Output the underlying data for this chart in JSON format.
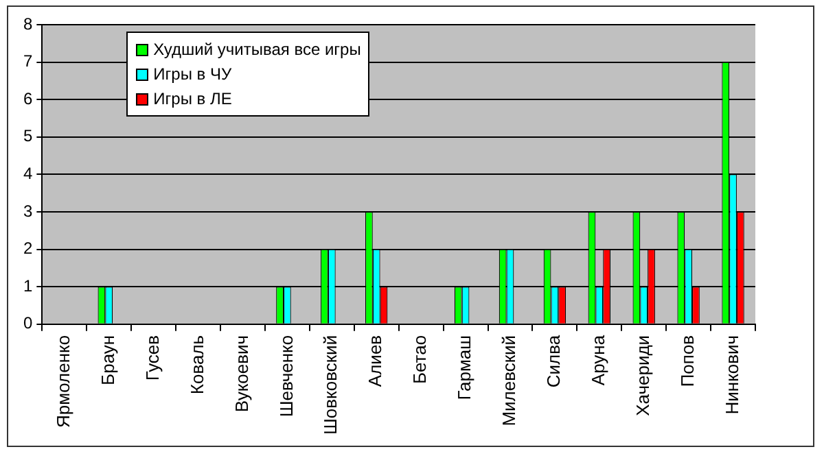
{
  "chart_data": {
    "type": "bar",
    "categories": [
      "Ярмоленко",
      "Браун",
      "Гусев",
      "Коваль",
      "Вукоевич",
      "Шевченко",
      "Шовковский",
      "Алиев",
      "Бетао",
      "Гармаш",
      "Милевский",
      "Силва",
      "Аруна",
      "Хачериди",
      "Попов",
      "Нинкович"
    ],
    "series": [
      {
        "name": "Худший учитывая все игры",
        "color": "#00ff00",
        "values": [
          0,
          1,
          0,
          0,
          0,
          1,
          2,
          3,
          0,
          1,
          2,
          2,
          3,
          3,
          3,
          7
        ]
      },
      {
        "name": "Игры в ЧУ",
        "color": "#00ffff",
        "values": [
          0,
          1,
          0,
          0,
          0,
          1,
          2,
          2,
          0,
          1,
          2,
          1,
          1,
          1,
          2,
          4
        ]
      },
      {
        "name": "Игры в ЛЕ",
        "color": "#ff0000",
        "values": [
          0,
          0,
          0,
          0,
          0,
          0,
          0,
          1,
          0,
          0,
          0,
          1,
          2,
          2,
          1,
          3
        ]
      }
    ],
    "ylim": [
      0,
      8
    ],
    "yticks": [
      0,
      1,
      2,
      3,
      4,
      5,
      6,
      7,
      8
    ],
    "grid": "y",
    "legend": "top left"
  }
}
